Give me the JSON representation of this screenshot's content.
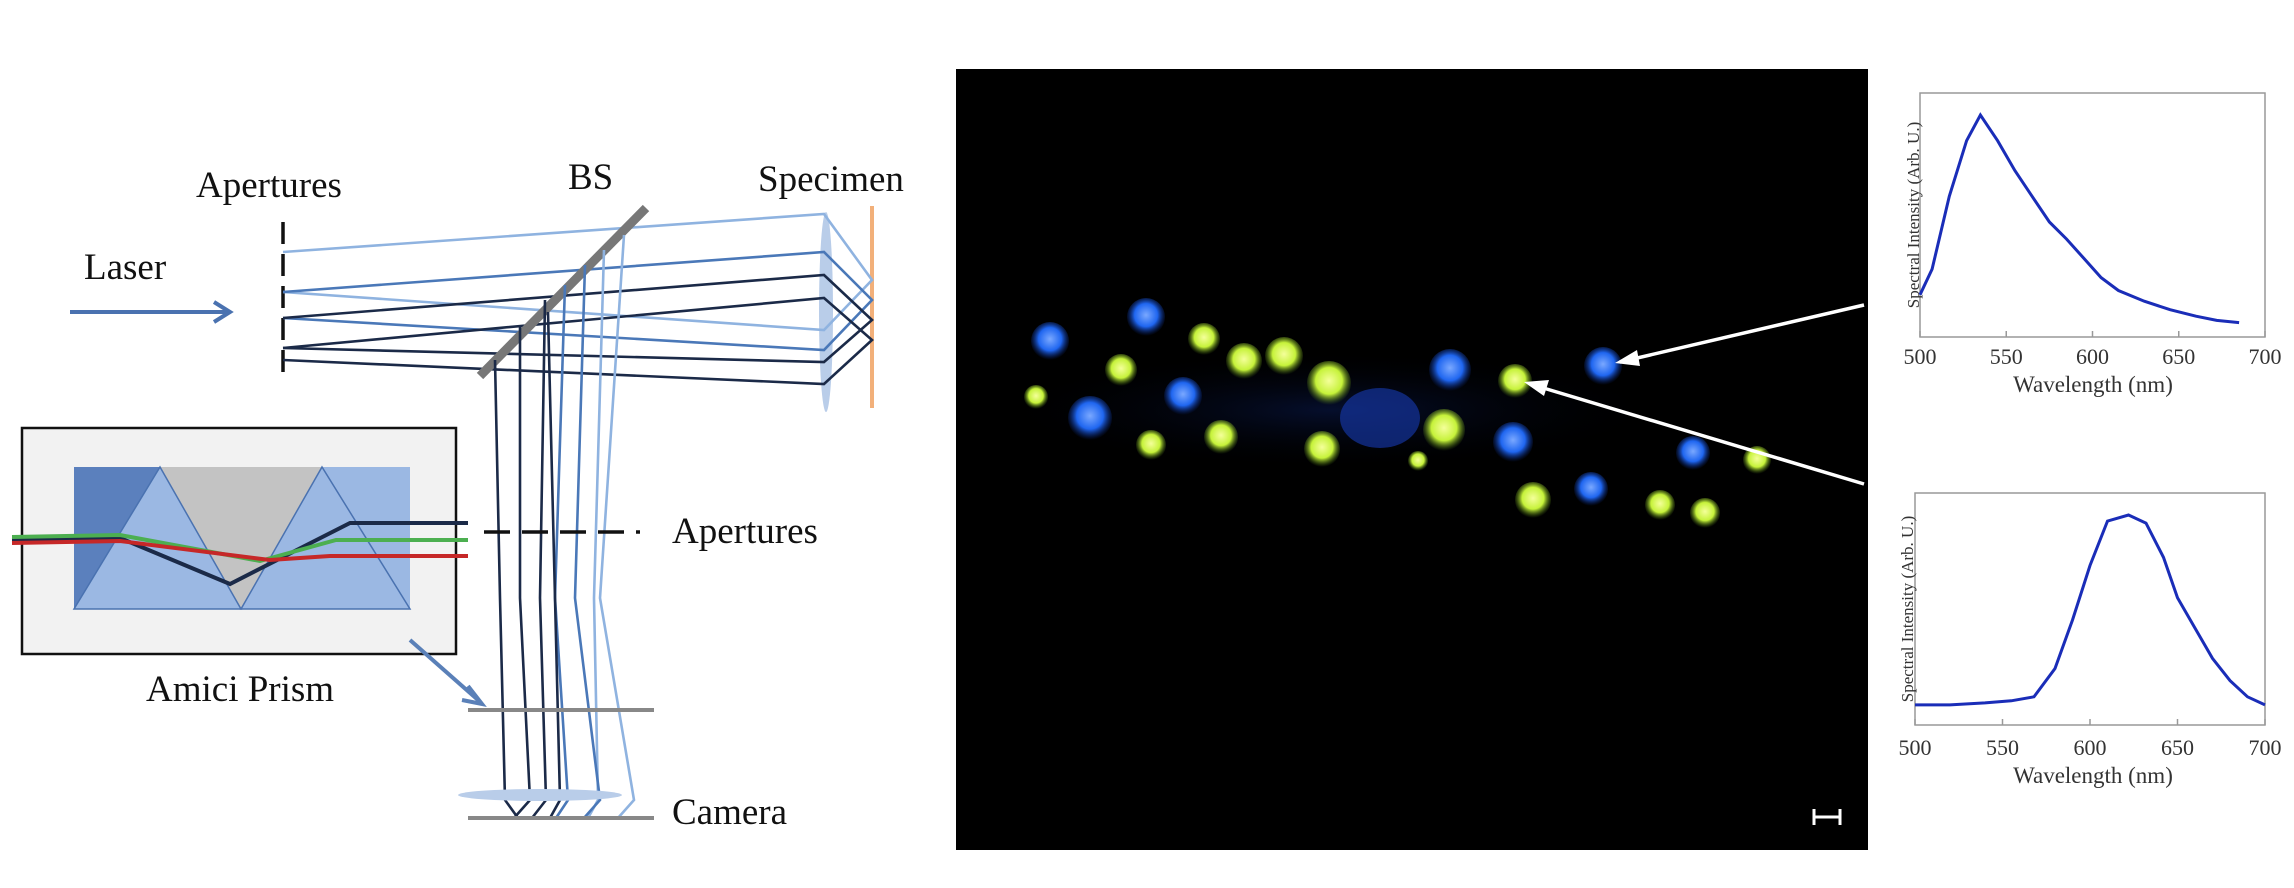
{
  "diagram": {
    "labels": {
      "apertures_top": "Apertures",
      "beam_splitter": "BS",
      "specimen": "Specimen",
      "laser": "Laser",
      "apertures_mid": "Apertures",
      "prism": "Amici Prism",
      "camera": "Camera"
    }
  },
  "colors": {
    "ray_dark": "#1b2a48",
    "ray_mid": "#4a78b8",
    "ray_light": "#8fb3e0",
    "prism_fill": "#9bb8e3",
    "prism_dark": "#5b80bd",
    "prism_gray": "#c3c3c3",
    "specimen_line": "#f2b07a",
    "spectrum_line": "#1a2db8",
    "cell_blue": "#1f66f0",
    "cell_green": "#c6f23a"
  },
  "micrograph": {
    "scale_bar_symbol": "⊢⊣"
  },
  "chart_data": [
    {
      "type": "line",
      "title": "",
      "xlabel": "Wavelength (nm)",
      "ylabel": "Spectral Intensity (Arb. U.)",
      "xlim": [
        500,
        700
      ],
      "xticks": [
        "500",
        "550",
        "600",
        "650",
        "700"
      ],
      "grid": false,
      "x": [
        500,
        507,
        517,
        527,
        535,
        545,
        555,
        565,
        575,
        585,
        595,
        605,
        615,
        630,
        645,
        660,
        672,
        685
      ],
      "y": [
        0.16,
        0.28,
        0.62,
        0.88,
        1.0,
        0.88,
        0.74,
        0.62,
        0.5,
        0.42,
        0.33,
        0.24,
        0.18,
        0.13,
        0.09,
        0.06,
        0.04,
        0.03
      ]
    },
    {
      "type": "line",
      "title": "",
      "xlabel": "Wavelength (nm)",
      "ylabel": "Spectral Intensity (Arb. U.)",
      "xlim": [
        500,
        700
      ],
      "xticks": [
        "500",
        "550",
        "600",
        "650",
        "700"
      ],
      "grid": false,
      "x": [
        500,
        520,
        540,
        555,
        568,
        580,
        590,
        600,
        610,
        622,
        632,
        642,
        650,
        660,
        670,
        680,
        690,
        700
      ],
      "y": [
        0.06,
        0.06,
        0.07,
        0.08,
        0.1,
        0.24,
        0.48,
        0.75,
        0.97,
        1.0,
        0.96,
        0.79,
        0.59,
        0.44,
        0.29,
        0.18,
        0.1,
        0.06
      ]
    }
  ]
}
